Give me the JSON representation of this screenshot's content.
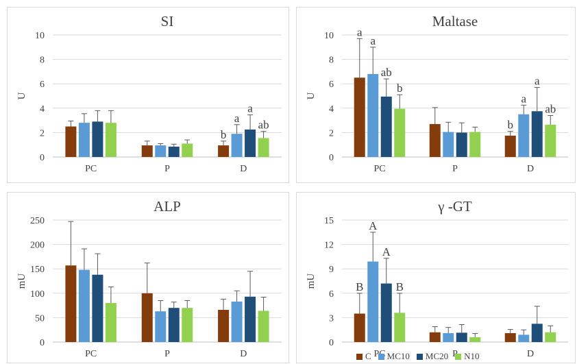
{
  "colors": {
    "C": "#843c0c",
    "MC10": "#5b9bd5",
    "MC20": "#1f4e79",
    "N10": "#92d050"
  },
  "legend": [
    {
      "label": "C",
      "key": "C"
    },
    {
      "label": "MC10",
      "key": "MC10"
    },
    {
      "label": "MC20",
      "key": "MC20"
    },
    {
      "label": "N10",
      "key": "N10"
    }
  ],
  "chart_data": [
    {
      "type": "bar",
      "title": "SI",
      "ylabel": "U",
      "categories": [
        "PC",
        "P",
        "D"
      ],
      "ylim": [
        0,
        10
      ],
      "yticks": [
        "0",
        "2",
        "4",
        "6",
        "8",
        "10"
      ],
      "grid": true,
      "series": [
        {
          "name": "C",
          "values": [
            2.5,
            0.95,
            0.95
          ],
          "errors": [
            0.45,
            0.35,
            0.35
          ],
          "labels": [
            "",
            "",
            "b"
          ]
        },
        {
          "name": "MC10",
          "values": [
            2.8,
            0.95,
            1.9
          ],
          "errors": [
            0.75,
            0.15,
            0.75
          ],
          "labels": [
            "",
            "",
            "a"
          ]
        },
        {
          "name": "MC20",
          "values": [
            2.9,
            0.85,
            2.25
          ],
          "errors": [
            0.9,
            0.2,
            1.2
          ],
          "labels": [
            "",
            "",
            "a"
          ]
        },
        {
          "name": "N10",
          "values": [
            2.8,
            1.1,
            1.55
          ],
          "errors": [
            1.0,
            0.3,
            0.55
          ],
          "labels": [
            "",
            "",
            "ab"
          ]
        }
      ]
    },
    {
      "type": "bar",
      "title": "Maltase",
      "ylabel": "U",
      "categories": [
        "PC",
        "P",
        "D"
      ],
      "ylim": [
        0,
        10
      ],
      "yticks": [
        "0",
        "2",
        "4",
        "6",
        "8",
        "10"
      ],
      "grid": true,
      "series": [
        {
          "name": "C",
          "values": [
            6.5,
            2.7,
            1.75
          ],
          "errors": [
            3.2,
            1.35,
            0.35
          ],
          "labels": [
            "a",
            "",
            "b"
          ]
        },
        {
          "name": "MC10",
          "values": [
            6.8,
            2.05,
            3.5
          ],
          "errors": [
            2.2,
            0.8,
            0.75
          ],
          "labels": [
            "a",
            "",
            "a"
          ]
        },
        {
          "name": "MC20",
          "values": [
            4.95,
            2.0,
            3.75
          ],
          "errors": [
            1.45,
            0.8,
            1.95
          ],
          "labels": [
            "ab",
            "",
            "a"
          ]
        },
        {
          "name": "N10",
          "values": [
            3.95,
            2.05,
            2.65
          ],
          "errors": [
            1.15,
            0.4,
            0.75
          ],
          "labels": [
            "b",
            "",
            "ab"
          ]
        }
      ]
    },
    {
      "type": "bar",
      "title": "ALP",
      "ylabel": "mU",
      "categories": [
        "PC",
        "P",
        "D"
      ],
      "ylim": [
        0,
        250
      ],
      "yticks": [
        "0",
        "50",
        "100",
        "150",
        "200",
        "250"
      ],
      "grid": true,
      "series": [
        {
          "name": "C",
          "values": [
            157,
            100,
            66
          ],
          "errors": [
            90,
            62,
            22
          ],
          "labels": [
            "",
            "",
            ""
          ]
        },
        {
          "name": "MC10",
          "values": [
            148,
            63,
            83
          ],
          "errors": [
            43,
            22,
            22
          ],
          "labels": [
            "",
            "",
            ""
          ]
        },
        {
          "name": "MC20",
          "values": [
            138,
            70,
            93
          ],
          "errors": [
            43,
            12,
            52
          ],
          "labels": [
            "",
            "",
            ""
          ]
        },
        {
          "name": "N10",
          "values": [
            80,
            70,
            64
          ],
          "errors": [
            33,
            15,
            28
          ],
          "labels": [
            "",
            "",
            ""
          ]
        }
      ]
    },
    {
      "type": "bar",
      "title": "γ -GT",
      "ylabel": "mU",
      "categories": [
        "PC",
        "P",
        "D"
      ],
      "ylim": [
        0,
        15
      ],
      "yticks": [
        "0",
        "3",
        "6",
        "9",
        "12",
        "15"
      ],
      "grid": true,
      "series": [
        {
          "name": "C",
          "values": [
            3.5,
            1.2,
            1.1
          ],
          "errors": [
            2.5,
            0.7,
            0.45
          ],
          "labels": [
            "B",
            "",
            ""
          ]
        },
        {
          "name": "MC10",
          "values": [
            9.9,
            1.1,
            0.9
          ],
          "errors": [
            3.6,
            0.7,
            0.6
          ],
          "labels": [
            "A",
            "",
            ""
          ]
        },
        {
          "name": "MC20",
          "values": [
            7.2,
            1.15,
            2.25
          ],
          "errors": [
            3.1,
            1.0,
            2.15
          ],
          "labels": [
            "A",
            "",
            ""
          ]
        },
        {
          "name": "N10",
          "values": [
            3.6,
            0.6,
            1.2
          ],
          "errors": [
            2.4,
            0.45,
            0.8
          ],
          "labels": [
            "B",
            "",
            ""
          ]
        }
      ]
    }
  ]
}
